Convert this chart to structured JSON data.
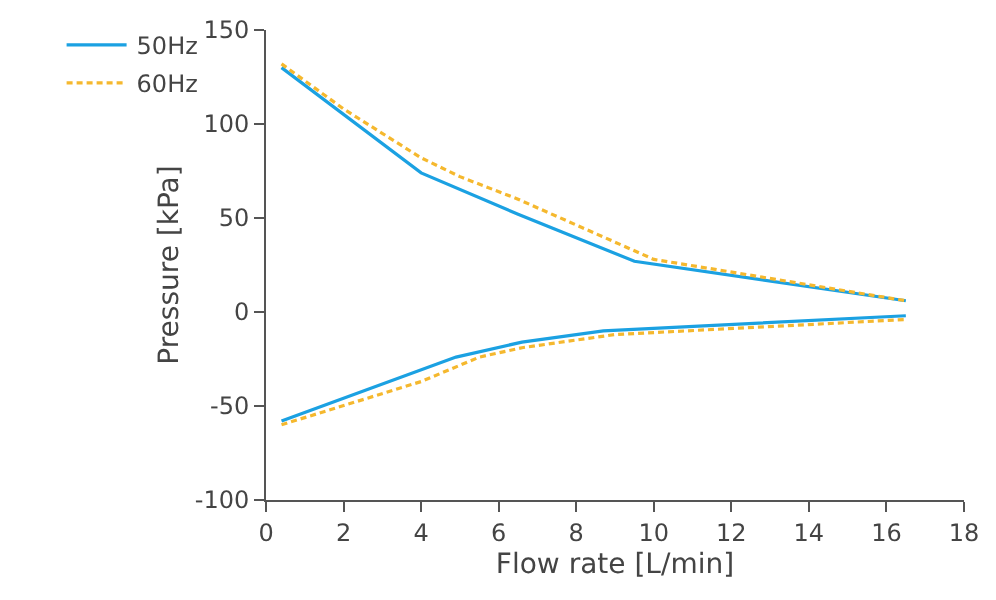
{
  "chart_data": {
    "type": "line",
    "xlabel": "Flow rate [L/min]",
    "ylabel": "Pressure [kPa]",
    "xlim": [
      0,
      18
    ],
    "xticks": [
      0,
      2,
      4,
      6,
      8,
      10,
      12,
      14,
      16,
      18
    ],
    "ylim": [
      -100,
      150
    ],
    "yticks": [
      -100,
      -50,
      0,
      50,
      100,
      150
    ],
    "legend": "top left",
    "marker": "none",
    "series": [
      {
        "name": "50Hz",
        "color": "#1ba1e2",
        "line_style": "solid",
        "x": [
          0.4,
          4,
          6.5,
          9.5,
          16.5,
          null,
          0.4,
          4.9,
          6.6,
          8.7,
          16.5
        ],
        "values": [
          130,
          74,
          52,
          27,
          6,
          null,
          -58,
          -24,
          -16,
          -10,
          -2
        ]
      },
      {
        "name": "60Hz",
        "color": "#f5b82e",
        "line_style": "dashed",
        "x": [
          0.4,
          2,
          4,
          5,
          6.5,
          10,
          16.5,
          null,
          0.4,
          4,
          5.5,
          6.6,
          9,
          16.5
        ],
        "values": [
          132,
          108,
          82,
          72,
          60,
          28,
          6,
          null,
          -60,
          -37,
          -24,
          -19,
          -12,
          -4
        ]
      }
    ]
  }
}
